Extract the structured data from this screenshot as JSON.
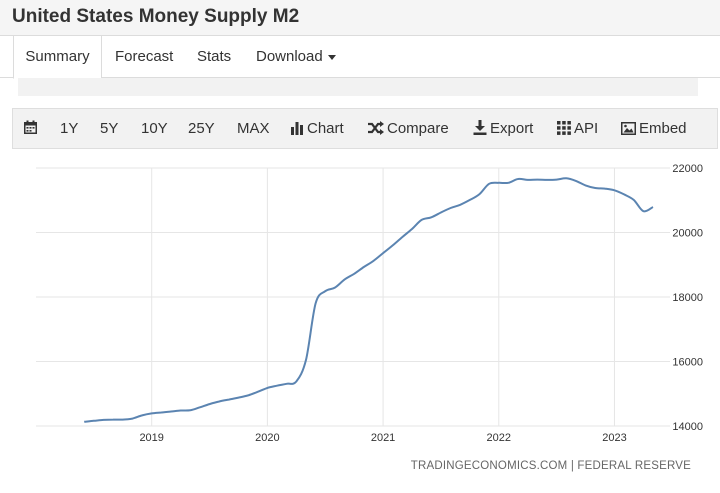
{
  "header": {
    "title": "United States Money Supply M2"
  },
  "tabs": [
    {
      "label": "Summary"
    },
    {
      "label": "Forecast"
    },
    {
      "label": "Stats"
    },
    {
      "label": "Download"
    }
  ],
  "toolbar": {
    "range_1y": "1Y",
    "range_5y": "5Y",
    "range_10y": "10Y",
    "range_25y": "25Y",
    "range_max": "MAX",
    "chart": "Chart",
    "compare": "Compare",
    "export": "Export",
    "api": "API",
    "embed": "Embed"
  },
  "source": "TRADINGECONOMICS.COM | FEDERAL RESERVE",
  "colors": {
    "line": "#5b84b1",
    "grid": "#e6e6e6",
    "toolbar_bg": "#f2f2f2"
  },
  "chart_data": {
    "type": "line",
    "title": "",
    "xlabel": "",
    "ylabel": "",
    "x_ticks": [
      "2019",
      "2020",
      "2021",
      "2022",
      "2023"
    ],
    "y_ticks": [
      14000,
      16000,
      18000,
      20000,
      22000
    ],
    "ylim": [
      14000,
      22000
    ],
    "grid": true,
    "y_axis_side": "right",
    "series": [
      {
        "x": [
          "2018-06",
          "2018-07",
          "2018-08",
          "2018-09",
          "2018-10",
          "2018-11",
          "2018-12",
          "2019-01",
          "2019-02",
          "2019-03",
          "2019-04",
          "2019-05",
          "2019-06",
          "2019-07",
          "2019-08",
          "2019-09",
          "2019-10",
          "2019-11",
          "2019-12",
          "2020-01",
          "2020-02",
          "2020-03",
          "2020-04",
          "2020-05",
          "2020-06",
          "2020-07",
          "2020-08",
          "2020-09",
          "2020-10",
          "2020-11",
          "2020-12",
          "2021-01",
          "2021-02",
          "2021-03",
          "2021-04",
          "2021-05",
          "2021-06",
          "2021-07",
          "2021-08",
          "2021-09",
          "2021-10",
          "2021-11",
          "2021-12",
          "2022-01",
          "2022-02",
          "2022-03",
          "2022-04",
          "2022-05",
          "2022-06",
          "2022-07",
          "2022-08",
          "2022-09",
          "2022-10",
          "2022-11",
          "2022-12",
          "2023-01",
          "2023-02",
          "2023-03",
          "2023-04",
          "2023-05"
        ],
        "values": [
          14130,
          14160,
          14190,
          14200,
          14200,
          14230,
          14330,
          14390,
          14420,
          14450,
          14480,
          14490,
          14580,
          14680,
          14760,
          14820,
          14880,
          14950,
          15060,
          15180,
          15250,
          15310,
          15380,
          16050,
          17800,
          18180,
          18290,
          18540,
          18720,
          18930,
          19120,
          19360,
          19600,
          19860,
          20110,
          20390,
          20470,
          20620,
          20760,
          20860,
          21010,
          21190,
          21510,
          21540,
          21540,
          21660,
          21630,
          21640,
          21630,
          21640,
          21680,
          21600,
          21460,
          21380,
          21360,
          21310,
          21180,
          21010,
          20660,
          20790
        ]
      }
    ]
  }
}
